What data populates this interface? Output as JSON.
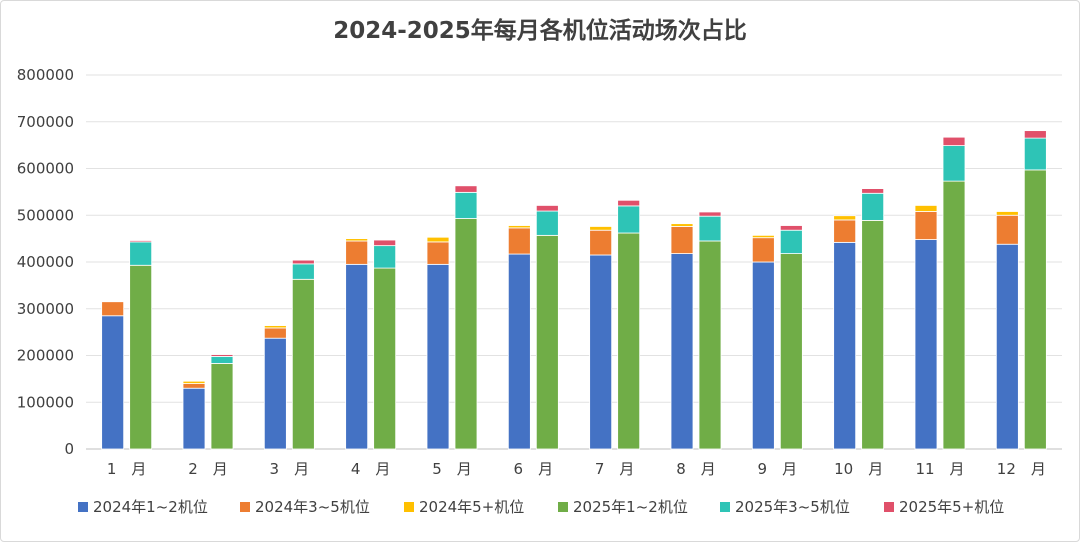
{
  "chart_data": {
    "type": "bar",
    "stacked": true,
    "title": "2024-2025年每月各机位活动场次占比",
    "categories": [
      "1　月",
      "2　月",
      "3　月",
      "4　月",
      "5　月",
      "6　月",
      "7　月",
      "8　月",
      "9　月",
      "10　月",
      "11　月",
      "12　月"
    ],
    "ylim": [
      0,
      800000
    ],
    "yticks": [
      0,
      100000,
      200000,
      300000,
      400000,
      500000,
      600000,
      700000,
      800000
    ],
    "grid": true,
    "legend_position": "bottom",
    "groups": [
      {
        "year": "2024",
        "series": [
          {
            "name": "2024年1~2机位",
            "color": "#4472C4",
            "values": [
              285000,
              130000,
              237000,
              395000,
              395000,
              417000,
              415000,
              418000,
              400000,
              442000,
              448000,
              438000
            ]
          },
          {
            "name": "2024年3~5机位",
            "color": "#ED7D31",
            "values": [
              30000,
              10000,
              22000,
              50000,
              48000,
              56000,
              53000,
              58000,
              52000,
              48000,
              60000,
              62000
            ]
          },
          {
            "name": "2024年5+机位",
            "color": "#FFC000",
            "values": [
              0,
              5000,
              5000,
              5000,
              10000,
              5000,
              8000,
              6000,
              5000,
              9000,
              13000,
              8000
            ]
          }
        ]
      },
      {
        "year": "2025",
        "series": [
          {
            "name": "2025年1~2机位",
            "color": "#70AD47",
            "values": [
              393000,
              183000,
              363000,
              387000,
              493000,
              457000,
              462000,
              445000,
              418000,
              489000,
              573000,
              597000
            ]
          },
          {
            "name": "2025年3~5机位",
            "color": "#2EC4B6",
            "values": [
              50000,
              15000,
              33000,
              48000,
              56000,
              52000,
              58000,
              53000,
              50000,
              58000,
              76000,
              68000
            ]
          },
          {
            "name": "2025年5+机位",
            "color": "#E0506A",
            "values": [
              3000,
              4000,
              8000,
              12000,
              14000,
              12000,
              12000,
              9000,
              10000,
              10000,
              18000,
              16000
            ]
          }
        ]
      }
    ]
  }
}
